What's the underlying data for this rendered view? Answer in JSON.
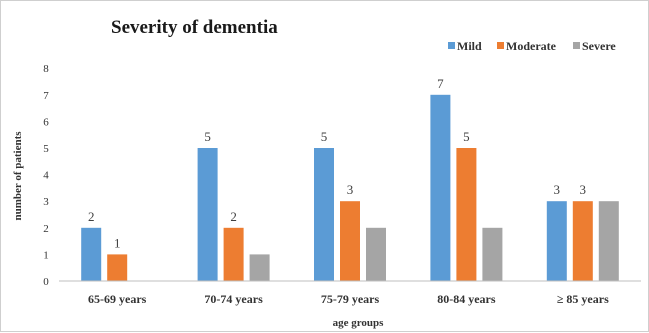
{
  "colors": {
    "mild": "#5b9bd5",
    "moderate": "#ed7d31",
    "severe": "#a5a5a5",
    "baseline": "#bfbfbf",
    "text": "#404040"
  },
  "chart_data": {
    "type": "bar",
    "title": "Severity of dementia",
    "xlabel": "age groups",
    "ylabel": "number of patients",
    "ylim": [
      0,
      8
    ],
    "yticks": [
      "0",
      "1",
      "2",
      "3",
      "4",
      "5",
      "6",
      "7",
      "8"
    ],
    "categories": [
      "65-69 years",
      "70-74 years",
      "75-79 years",
      "80-84 years",
      "≥ 85 years"
    ],
    "series": [
      {
        "name": "Mild",
        "values": [
          2,
          5,
          5,
          7,
          3
        ],
        "labels": [
          "2",
          "5",
          "5",
          "7",
          "3"
        ]
      },
      {
        "name": "Moderate",
        "values": [
          1,
          2,
          3,
          5,
          3
        ],
        "labels": [
          "1",
          "2",
          "3",
          "5",
          "3"
        ]
      },
      {
        "name": "Severe",
        "values": [
          0,
          1,
          2,
          2,
          3
        ],
        "labels": [
          "",
          "",
          "",
          "",
          ""
        ]
      }
    ],
    "legend_position": "top-right",
    "grid": false
  }
}
